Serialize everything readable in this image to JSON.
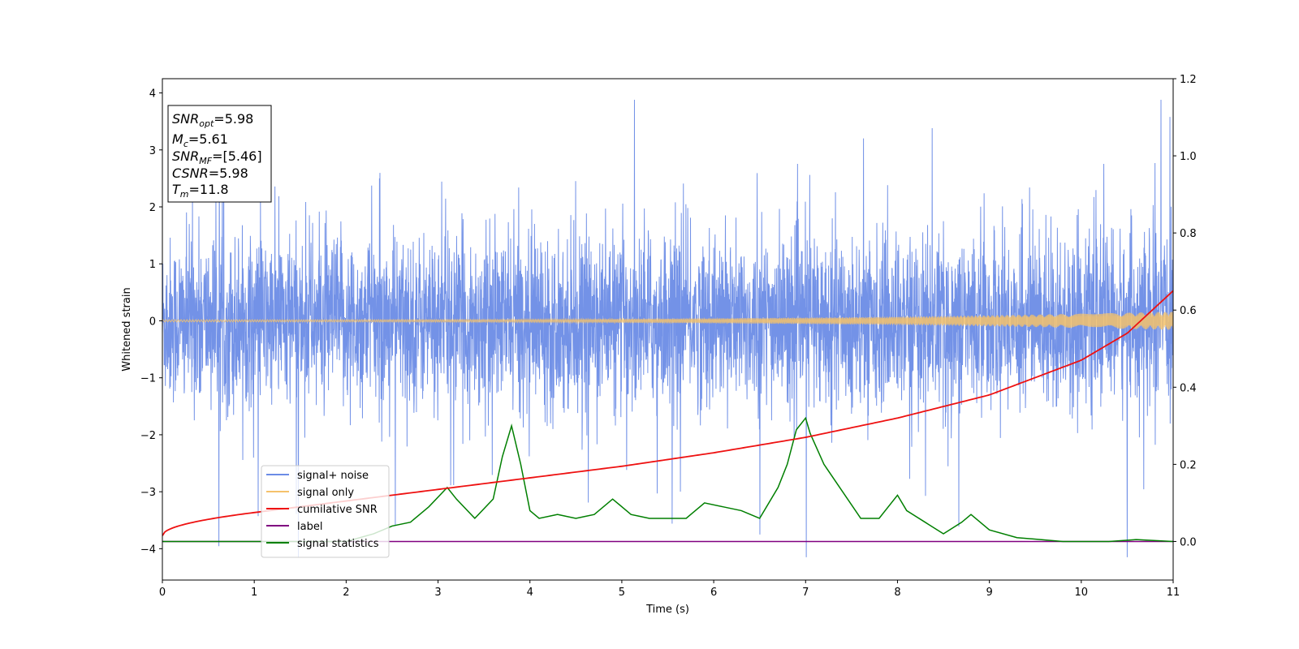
{
  "chart_data": {
    "type": "line",
    "xlabel": "Time (s)",
    "ylabel": "Whitened strain",
    "xlim": [
      0,
      11
    ],
    "ylim_left": [
      -4.55,
      4.25
    ],
    "ylim_right": [
      -0.1,
      1.2
    ],
    "x_ticks": [
      "0",
      "1",
      "2",
      "3",
      "4",
      "5",
      "6",
      "7",
      "8",
      "9",
      "10",
      "11"
    ],
    "y_left_ticks": [
      "4",
      "3",
      "2",
      "1",
      "0",
      "−1",
      "−2",
      "−3",
      "−4"
    ],
    "y_left_tick_values": [
      4,
      3,
      2,
      1,
      0,
      -1,
      -2,
      -3,
      -4
    ],
    "y_right_ticks": [
      "1.2",
      "1.0",
      "0.8",
      "0.6",
      "0.4",
      "0.2",
      "0.0"
    ],
    "y_right_tick_values": [
      1.2,
      1.0,
      0.8,
      0.6,
      0.4,
      0.2,
      0.0
    ],
    "grid": false,
    "legend_position": "lower-left",
    "series": [
      {
        "name": "signal+ noise",
        "color": "#6b8ce6",
        "axis": "left",
        "kind": "noise",
        "amplitude_typical": 1.3,
        "max": 3.88,
        "min": -4.15
      },
      {
        "name": "signal only",
        "color": "#f5c26b",
        "axis": "left",
        "kind": "chirp",
        "amplitude_start": 0.02,
        "amplitude_end": 0.16
      },
      {
        "name": "cumilative SNR",
        "color": "#ee1111",
        "axis": "right",
        "x": [
          0,
          1,
          2,
          3,
          4,
          5,
          6,
          7,
          8,
          9,
          10,
          10.5,
          11
        ],
        "values": [
          0.015,
          0.075,
          0.105,
          0.135,
          0.165,
          0.195,
          0.23,
          0.27,
          0.32,
          0.38,
          0.47,
          0.54,
          0.65
        ]
      },
      {
        "name": "label",
        "color": "#800080",
        "axis": "right",
        "x": [
          0,
          11
        ],
        "values": [
          0.0,
          0.0
        ]
      },
      {
        "name": "signal statistics",
        "color": "#007f00",
        "axis": "right",
        "x": [
          0,
          2.0,
          2.3,
          2.5,
          2.7,
          2.9,
          3.1,
          3.2,
          3.4,
          3.6,
          3.7,
          3.8,
          3.9,
          4.0,
          4.1,
          4.3,
          4.5,
          4.7,
          4.9,
          5.1,
          5.3,
          5.5,
          5.7,
          5.9,
          6.1,
          6.3,
          6.5,
          6.7,
          6.8,
          6.9,
          7.0,
          7.05,
          7.2,
          7.4,
          7.6,
          7.8,
          8.0,
          8.1,
          8.3,
          8.5,
          8.7,
          8.8,
          9.0,
          9.3,
          9.8,
          10.3,
          10.6,
          11
        ],
        "values": [
          0.0,
          0.0,
          0.02,
          0.04,
          0.05,
          0.09,
          0.14,
          0.11,
          0.06,
          0.11,
          0.22,
          0.3,
          0.2,
          0.08,
          0.06,
          0.07,
          0.06,
          0.07,
          0.11,
          0.07,
          0.06,
          0.06,
          0.06,
          0.1,
          0.09,
          0.08,
          0.06,
          0.14,
          0.2,
          0.29,
          0.32,
          0.28,
          0.2,
          0.13,
          0.06,
          0.06,
          0.12,
          0.08,
          0.05,
          0.02,
          0.05,
          0.07,
          0.03,
          0.01,
          0.0,
          0.0,
          0.005,
          0.0
        ]
      }
    ],
    "info_box": [
      {
        "main": "SNR",
        "sub": "opt",
        "rest": "=5.98"
      },
      {
        "main": "M",
        "sub": "c",
        "rest": "=5.61"
      },
      {
        "main": "SNR",
        "sub": "MF",
        "rest": "=[5.46]"
      },
      {
        "main": "CSNR",
        "sub": "",
        "rest": "=5.98"
      },
      {
        "main": "T",
        "sub": "m",
        "rest": "=11.8"
      }
    ]
  }
}
